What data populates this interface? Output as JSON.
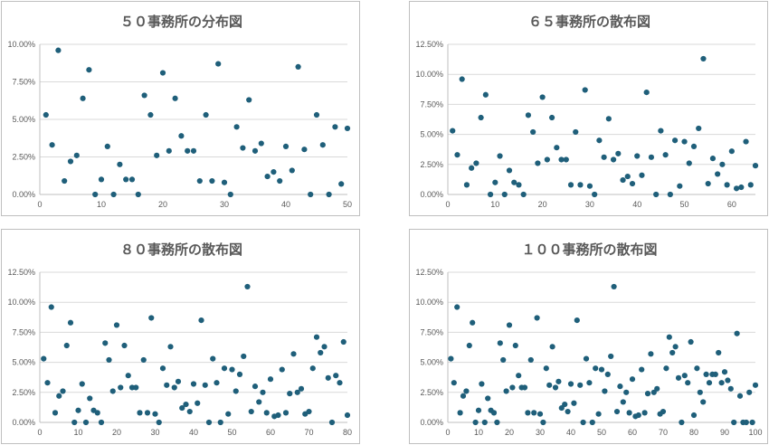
{
  "chart_data": [
    {
      "type": "scatter",
      "title": "５０事務所の分布図",
      "xlim": [
        0,
        50
      ],
      "xticks": [
        0,
        10,
        20,
        30,
        40,
        50
      ],
      "ylim": [
        0,
        0.1
      ],
      "yticks": [
        "0.00%",
        "2.50%",
        "5.00%",
        "7.50%",
        "10.00%"
      ],
      "grid": "horizontal",
      "marker_color": "#1F5F7A",
      "series": [
        {
          "y": [
            0.053,
            0.033,
            0.096,
            0.009,
            0.022,
            0.026,
            0.064,
            0.083,
            0.0,
            0.01,
            0.032,
            0.0,
            0.02,
            0.01,
            0.01,
            0.0,
            0.066,
            0.053,
            0.026,
            0.081,
            0.029,
            0.064,
            0.039,
            0.029,
            0.029,
            0.009,
            0.053,
            0.009,
            0.087,
            0.008,
            0.0,
            0.045,
            0.031,
            0.063,
            0.029,
            0.034,
            0.012,
            0.015,
            0.009,
            0.032,
            0.016,
            0.085,
            0.03,
            0.0,
            0.053,
            0.033,
            0.0,
            0.045,
            0.007,
            0.044
          ]
        }
      ]
    },
    {
      "type": "scatter",
      "title": "６５事務所の散布図",
      "xlim": [
        0,
        65
      ],
      "xticks": [
        0,
        10,
        20,
        30,
        40,
        50,
        60
      ],
      "ylim": [
        0,
        0.125
      ],
      "yticks": [
        "0.00%",
        "2.50%",
        "5.00%",
        "7.50%",
        "10.00%",
        "12.50%"
      ],
      "grid": "horizontal",
      "marker_color": "#1F5F7A",
      "series": [
        {
          "y": [
            0.053,
            0.033,
            0.096,
            0.008,
            0.022,
            0.026,
            0.064,
            0.083,
            0.0,
            0.01,
            0.032,
            0.0,
            0.02,
            0.01,
            0.008,
            0.0,
            0.066,
            0.052,
            0.026,
            0.081,
            0.029,
            0.064,
            0.039,
            0.029,
            0.029,
            0.008,
            0.052,
            0.008,
            0.087,
            0.007,
            0.0,
            0.045,
            0.031,
            0.063,
            0.029,
            0.034,
            0.012,
            0.015,
            0.009,
            0.032,
            0.016,
            0.085,
            0.031,
            0.0,
            0.053,
            0.033,
            0.0,
            0.045,
            0.007,
            0.044,
            0.026,
            0.04,
            0.055,
            0.113,
            0.009,
            0.03,
            0.017,
            0.025,
            0.008,
            0.036,
            0.005,
            0.006,
            0.044,
            0.008,
            0.024
          ]
        }
      ]
    },
    {
      "type": "scatter",
      "title": "８０事務所の散布図",
      "xlim": [
        0,
        80
      ],
      "xticks": [
        0,
        10,
        20,
        30,
        40,
        50,
        60,
        70,
        80
      ],
      "ylim": [
        0,
        0.125
      ],
      "yticks": [
        "0.00%",
        "2.50%",
        "5.00%",
        "7.50%",
        "10.00%",
        "12.50%"
      ],
      "grid": "horizontal",
      "marker_color": "#1F5F7A",
      "series": [
        {
          "y": [
            0.053,
            0.033,
            0.096,
            0.008,
            0.022,
            0.026,
            0.064,
            0.083,
            0.0,
            0.01,
            0.032,
            0.0,
            0.02,
            0.01,
            0.008,
            0.0,
            0.066,
            0.052,
            0.026,
            0.081,
            0.029,
            0.064,
            0.039,
            0.029,
            0.029,
            0.008,
            0.052,
            0.008,
            0.087,
            0.007,
            0.0,
            0.045,
            0.031,
            0.063,
            0.029,
            0.034,
            0.012,
            0.015,
            0.009,
            0.032,
            0.016,
            0.085,
            0.031,
            0.0,
            0.053,
            0.033,
            0.0,
            0.045,
            0.007,
            0.044,
            0.026,
            0.04,
            0.055,
            0.113,
            0.009,
            0.03,
            0.017,
            0.025,
            0.008,
            0.036,
            0.005,
            0.006,
            0.044,
            0.008,
            0.024,
            0.057,
            0.025,
            0.028,
            0.007,
            0.009,
            0.045,
            0.071,
            0.058,
            0.063,
            0.037,
            0.0,
            0.039,
            0.033,
            0.067,
            0.006
          ]
        }
      ]
    },
    {
      "type": "scatter",
      "title": "１００事務所の散布図",
      "xlim": [
        0,
        100
      ],
      "xticks": [
        0,
        10,
        20,
        30,
        40,
        50,
        60,
        70,
        80,
        90,
        100
      ],
      "ylim": [
        0,
        0.125
      ],
      "yticks": [
        "0.00%",
        "2.50%",
        "5.00%",
        "7.50%",
        "10.00%",
        "12.50%"
      ],
      "grid": "horizontal",
      "marker_color": "#1F5F7A",
      "series": [
        {
          "y": [
            0.053,
            0.033,
            0.096,
            0.008,
            0.022,
            0.026,
            0.064,
            0.083,
            0.0,
            0.01,
            0.032,
            0.0,
            0.02,
            0.01,
            0.008,
            0.0,
            0.066,
            0.052,
            0.026,
            0.081,
            0.029,
            0.064,
            0.039,
            0.029,
            0.029,
            0.008,
            0.052,
            0.008,
            0.087,
            0.007,
            0.0,
            0.045,
            0.031,
            0.063,
            0.029,
            0.034,
            0.012,
            0.015,
            0.009,
            0.032,
            0.016,
            0.085,
            0.031,
            0.0,
            0.053,
            0.033,
            0.0,
            0.045,
            0.007,
            0.044,
            0.026,
            0.04,
            0.055,
            0.113,
            0.009,
            0.03,
            0.017,
            0.025,
            0.008,
            0.036,
            0.005,
            0.006,
            0.044,
            0.008,
            0.024,
            0.057,
            0.025,
            0.028,
            0.007,
            0.009,
            0.045,
            0.071,
            0.058,
            0.063,
            0.037,
            0.0,
            0.039,
            0.033,
            0.067,
            0.006,
            0.045,
            0.025,
            0.017,
            0.04,
            0.033,
            0.04,
            0.04,
            0.058,
            0.033,
            0.042,
            0.035,
            0.028,
            0.0,
            0.074,
            0.022,
            0.0,
            0.0,
            0.025,
            0.0,
            0.031
          ]
        }
      ]
    }
  ]
}
